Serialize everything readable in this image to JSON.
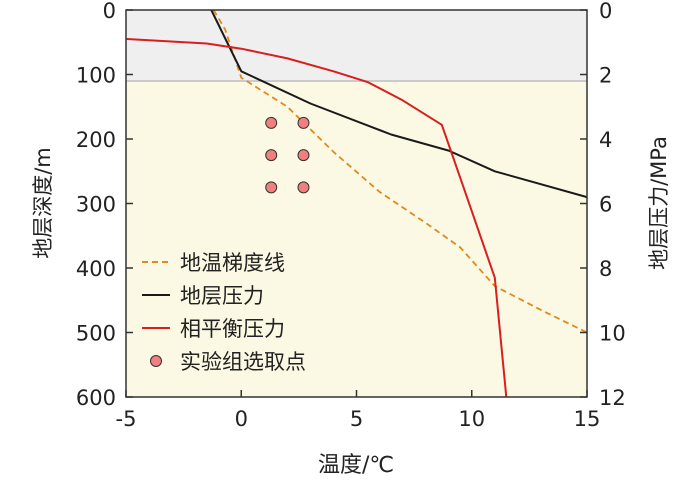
{
  "chart_data": {
    "type": "line",
    "xlabel": "温度/℃",
    "ylabel_left": "地层深度/m",
    "ylabel_right": "地层压力/MPa",
    "xlim": [
      -5,
      15
    ],
    "ylim_left": [
      0,
      600
    ],
    "ylim_right": [
      0,
      12
    ],
    "y_inverted": true,
    "grid": false,
    "legend_position": "bottom-left",
    "x_ticks": [
      "-5",
      "0",
      "5",
      "10",
      "15"
    ],
    "y_left_ticks": [
      "0",
      "100",
      "200",
      "300",
      "400",
      "500",
      "600"
    ],
    "y_right_ticks": [
      "0",
      "2",
      "4",
      "6",
      "8",
      "10",
      "12"
    ],
    "regions": [
      {
        "name": "upper-zone",
        "depth_from": 0,
        "depth_to": 110,
        "color": "#efefef"
      },
      {
        "name": "lower-zone",
        "depth_from": 110,
        "depth_to": 600,
        "color": "#fbf9e3"
      }
    ],
    "series": [
      {
        "name": "地温梯度线",
        "color": "#e08a1e",
        "style": "dashed",
        "points": [
          [
            -1.2,
            0
          ],
          [
            -0.7,
            30
          ],
          [
            0,
            105
          ],
          [
            2,
            150
          ],
          [
            4,
            220
          ],
          [
            6,
            282
          ],
          [
            8,
            330
          ],
          [
            9.5,
            368
          ],
          [
            11,
            428
          ],
          [
            13,
            465
          ],
          [
            15,
            500
          ]
        ]
      },
      {
        "name": "地层压力",
        "color": "#1a1a1a",
        "style": "solid",
        "points": [
          [
            -1.3,
            0
          ],
          [
            0,
            95
          ],
          [
            3,
            145
          ],
          [
            6.5,
            193
          ],
          [
            9,
            218
          ],
          [
            11,
            250
          ],
          [
            15,
            290
          ]
        ]
      },
      {
        "name": "相平衡压力",
        "color": "#d81e1e",
        "style": "solid",
        "points": [
          [
            -5,
            45
          ],
          [
            -1.5,
            52
          ],
          [
            0,
            60
          ],
          [
            2,
            75
          ],
          [
            4,
            95
          ],
          [
            5.5,
            112
          ],
          [
            7,
            140
          ],
          [
            8.7,
            178
          ],
          [
            9.5,
            260
          ],
          [
            11,
            415
          ],
          [
            11.5,
            600
          ]
        ]
      },
      {
        "name": "实验组选取点",
        "color": "#f08080",
        "style": "markers",
        "points": [
          [
            1.3,
            175
          ],
          [
            2.7,
            175
          ],
          [
            1.3,
            225
          ],
          [
            2.7,
            225
          ],
          [
            1.3,
            275
          ],
          [
            2.7,
            275
          ]
        ]
      }
    ]
  }
}
